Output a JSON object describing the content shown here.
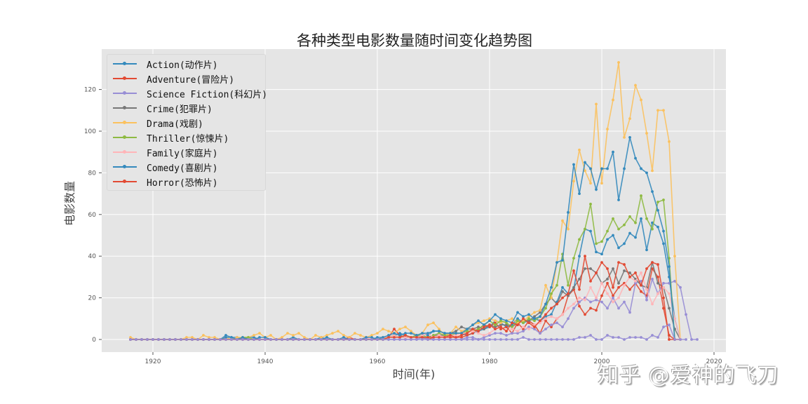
{
  "chart_data": {
    "type": "line",
    "title": "各种类型电影数量随时间变化趋势图",
    "xlabel": "时间(年)",
    "ylabel": "电影数量",
    "xlim": [
      1910,
      2022
    ],
    "ylim": [
      -6,
      140
    ],
    "xticks": [
      1920,
      1940,
      1960,
      1980,
      2000,
      2020
    ],
    "yticks": [
      0,
      20,
      40,
      60,
      80,
      100,
      120
    ],
    "grid": true,
    "legend_position": "upper left",
    "x_start": 1916,
    "x_end": 2017,
    "series": [
      {
        "name": "Action(动作片)",
        "color": "#348ABD",
        "values": [
          0,
          0,
          0,
          0,
          0,
          0,
          0,
          0,
          0,
          0,
          0,
          0,
          0,
          0,
          0,
          0,
          0,
          2,
          1,
          1,
          0,
          1,
          1,
          0,
          0,
          0,
          0,
          0,
          0,
          1,
          0,
          0,
          0,
          0,
          1,
          0,
          0,
          0,
          0,
          0,
          0,
          0,
          0,
          0,
          1,
          1,
          1,
          2,
          3,
          2,
          1,
          2,
          3,
          2,
          4,
          4,
          3,
          3,
          3,
          3,
          2,
          3,
          4,
          5,
          6,
          9,
          8,
          6,
          7,
          10,
          8,
          9,
          10,
          9,
          11,
          12,
          18,
          25,
          22,
          24,
          40,
          53,
          52,
          42,
          41,
          48,
          50,
          44,
          46,
          51,
          49,
          58,
          43,
          56,
          54,
          46,
          30,
          10,
          0
        ]
      },
      {
        "name": "Adventure(冒险片)",
        "color": "#E24A33",
        "values": [
          0,
          0,
          0,
          0,
          0,
          0,
          0,
          0,
          0,
          0,
          0,
          0,
          0,
          0,
          0,
          0,
          0,
          0,
          0,
          0,
          0,
          0,
          0,
          0,
          0,
          0,
          0,
          0,
          0,
          0,
          0,
          0,
          0,
          0,
          0,
          0,
          0,
          0,
          0,
          1,
          0,
          0,
          0,
          0,
          0,
          0,
          1,
          5,
          2,
          1,
          1,
          2,
          1,
          0,
          1,
          2,
          1,
          1,
          1,
          1,
          2,
          3,
          5,
          7,
          6,
          8,
          5,
          6,
          3,
          8,
          5,
          9,
          7,
          3,
          9,
          6,
          10,
          12,
          21,
          24,
          16,
          12,
          15,
          14,
          21,
          27,
          21,
          25,
          27,
          24,
          27,
          23,
          21,
          34,
          30,
          15,
          2,
          0,
          0
        ]
      },
      {
        "name": "Science Fiction(科幻片)",
        "color": "#988ED5",
        "values": [
          0,
          0,
          0,
          0,
          0,
          0,
          0,
          0,
          0,
          0,
          0,
          0,
          0,
          0,
          0,
          0,
          0,
          0,
          0,
          0,
          0,
          0,
          0,
          0,
          0,
          0,
          0,
          0,
          0,
          0,
          0,
          0,
          0,
          0,
          0,
          0,
          0,
          0,
          0,
          0,
          0,
          0,
          0,
          0,
          0,
          0,
          0,
          0,
          0,
          0,
          0,
          0,
          1,
          0,
          0,
          0,
          0,
          0,
          0,
          0,
          1,
          1,
          0,
          1,
          2,
          3,
          3,
          2,
          3,
          3,
          4,
          6,
          5,
          3,
          5,
          7,
          8,
          6,
          10,
          15,
          18,
          20,
          18,
          19,
          18,
          15,
          20,
          15,
          18,
          13,
          27,
          28,
          19,
          29,
          22,
          27,
          27,
          28,
          25,
          12,
          0,
          0
        ]
      },
      {
        "name": "Crime(犯罪片)",
        "color": "#777777",
        "values": [
          0,
          0,
          0,
          0,
          0,
          0,
          0,
          0,
          0,
          0,
          0,
          0,
          0,
          0,
          0,
          0,
          0,
          0,
          0,
          0,
          0,
          0,
          0,
          0,
          0,
          0,
          0,
          0,
          0,
          0,
          0,
          0,
          0,
          0,
          0,
          0,
          0,
          0,
          0,
          0,
          0,
          0,
          0,
          0,
          0,
          1,
          1,
          2,
          1,
          1,
          1,
          2,
          1,
          1,
          2,
          2,
          2,
          3,
          4,
          6,
          5,
          5,
          6,
          5,
          7,
          6,
          7,
          7,
          6,
          8,
          9,
          9,
          11,
          13,
          17,
          20,
          17,
          23,
          21,
          25,
          29,
          34,
          34,
          32,
          27,
          29,
          34,
          27,
          33,
          32,
          29,
          26,
          25,
          37,
          27,
          25,
          15,
          5,
          0
        ]
      },
      {
        "name": "Drama(戏剧)",
        "color": "#FBC15E",
        "values": [
          1,
          0,
          0,
          0,
          0,
          0,
          0,
          0,
          0,
          0,
          1,
          1,
          0,
          2,
          1,
          1,
          0,
          1,
          0,
          1,
          1,
          1,
          2,
          3,
          1,
          2,
          0,
          1,
          3,
          2,
          3,
          1,
          0,
          2,
          1,
          2,
          3,
          4,
          2,
          1,
          3,
          2,
          1,
          2,
          3,
          5,
          4,
          3,
          5,
          6,
          4,
          2,
          3,
          7,
          8,
          5,
          2,
          3,
          6,
          4,
          5,
          7,
          8,
          9,
          10,
          9,
          8,
          9,
          10,
          8,
          9,
          11,
          13,
          14,
          26,
          20,
          37,
          57,
          53,
          76,
          91,
          81,
          75,
          113,
          75,
          101,
          115,
          133,
          97,
          106,
          122,
          115,
          99,
          81,
          110,
          110,
          95,
          40,
          0
        ]
      },
      {
        "name": "Thriller(惊悚片)",
        "color": "#8EBA42",
        "values": [
          0,
          0,
          0,
          0,
          0,
          0,
          0,
          0,
          0,
          0,
          0,
          0,
          0,
          0,
          0,
          0,
          0,
          0,
          0,
          0,
          1,
          1,
          0,
          0,
          0,
          0,
          0,
          0,
          0,
          0,
          0,
          0,
          0,
          0,
          0,
          0,
          0,
          0,
          0,
          0,
          0,
          0,
          0,
          0,
          0,
          0,
          1,
          2,
          1,
          2,
          1,
          2,
          2,
          1,
          2,
          3,
          2,
          2,
          3,
          3,
          4,
          4,
          5,
          7,
          9,
          7,
          9,
          8,
          6,
          9,
          8,
          10,
          9,
          11,
          15,
          22,
          26,
          41,
          26,
          39,
          48,
          53,
          65,
          46,
          47,
          52,
          58,
          53,
          55,
          59,
          56,
          69,
          58,
          53,
          66,
          67,
          39,
          0
        ]
      },
      {
        "name": "Family(家庭片)",
        "color": "#FFB5B8",
        "values": [
          0,
          0,
          0,
          0,
          0,
          0,
          0,
          0,
          0,
          0,
          0,
          0,
          0,
          0,
          0,
          0,
          0,
          0,
          0,
          0,
          0,
          0,
          0,
          0,
          0,
          0,
          0,
          0,
          0,
          0,
          0,
          0,
          0,
          0,
          0,
          0,
          0,
          0,
          0,
          0,
          0,
          0,
          1,
          0,
          0,
          1,
          1,
          2,
          1,
          1,
          1,
          1,
          2,
          3,
          1,
          2,
          1,
          2,
          2,
          3,
          3,
          4,
          3,
          2,
          3,
          5,
          6,
          4,
          5,
          4,
          6,
          5,
          7,
          8,
          10,
          11,
          10,
          12,
          15,
          17,
          20,
          19,
          25,
          20,
          27,
          22,
          18,
          20,
          26,
          30,
          28,
          32,
          24,
          17,
          22,
          25,
          22,
          10,
          0
        ]
      },
      {
        "name": "Comedy(喜剧片)",
        "color": "#348ABD",
        "values": [
          0,
          0,
          0,
          0,
          0,
          0,
          0,
          0,
          0,
          0,
          0,
          0,
          0,
          0,
          0,
          0,
          0,
          1,
          1,
          0,
          1,
          0,
          0,
          1,
          1,
          0,
          0,
          0,
          0,
          0,
          0,
          0,
          0,
          0,
          0,
          1,
          0,
          0,
          1,
          0,
          0,
          0,
          1,
          1,
          0,
          1,
          2,
          3,
          2,
          3,
          3,
          2,
          3,
          3,
          4,
          4,
          3,
          3,
          3,
          3,
          5,
          7,
          9,
          7,
          9,
          12,
          10,
          9,
          8,
          13,
          11,
          12,
          10,
          11,
          17,
          25,
          37,
          38,
          61,
          84,
          70,
          85,
          82,
          72,
          82,
          82,
          90,
          67,
          82,
          97,
          87,
          82,
          80,
          71,
          62,
          52,
          35,
          0
        ]
      },
      {
        "name": "Horror(恐怖片)",
        "color": "#E24A33",
        "values": [
          0,
          0,
          0,
          0,
          0,
          0,
          0,
          0,
          0,
          0,
          0,
          0,
          0,
          0,
          0,
          0,
          0,
          0,
          0,
          0,
          0,
          0,
          0,
          0,
          0,
          0,
          0,
          0,
          0,
          0,
          0,
          0,
          0,
          0,
          0,
          0,
          0,
          0,
          0,
          0,
          0,
          0,
          0,
          0,
          0,
          0,
          1,
          1,
          1,
          2,
          1,
          1,
          1,
          1,
          1,
          1,
          1,
          2,
          1,
          2,
          3,
          5,
          4,
          6,
          7,
          5,
          6,
          4,
          8,
          7,
          10,
          8,
          6,
          9,
          12,
          15,
          17,
          20,
          22,
          33,
          24,
          40,
          28,
          32,
          37,
          34,
          25,
          37,
          36,
          30,
          32,
          26,
          34,
          37,
          36,
          20,
          0,
          0
        ]
      },
      {
        "name": "",
        "color": "#988ED5",
        "values": [
          0,
          0,
          0,
          0,
          0,
          0,
          0,
          0,
          0,
          0,
          0,
          0,
          0,
          0,
          0,
          0,
          0,
          0,
          0,
          0,
          0,
          0,
          0,
          0,
          0,
          0,
          0,
          0,
          0,
          0,
          0,
          0,
          0,
          0,
          0,
          0,
          0,
          0,
          0,
          0,
          0,
          0,
          0,
          0,
          0,
          0,
          0,
          0,
          0,
          0,
          0,
          0,
          0,
          0,
          0,
          0,
          0,
          0,
          0,
          0,
          0,
          0,
          0,
          0,
          0,
          0,
          0,
          0,
          0,
          0,
          1,
          0,
          0,
          0,
          0,
          0,
          0,
          0,
          0,
          0,
          1,
          1,
          2,
          0,
          0,
          2,
          1,
          1,
          0,
          1,
          1,
          1,
          0,
          2,
          1,
          6,
          7,
          0,
          0,
          0
        ]
      }
    ]
  },
  "watermark": "知乎 @爱神的飞刀"
}
